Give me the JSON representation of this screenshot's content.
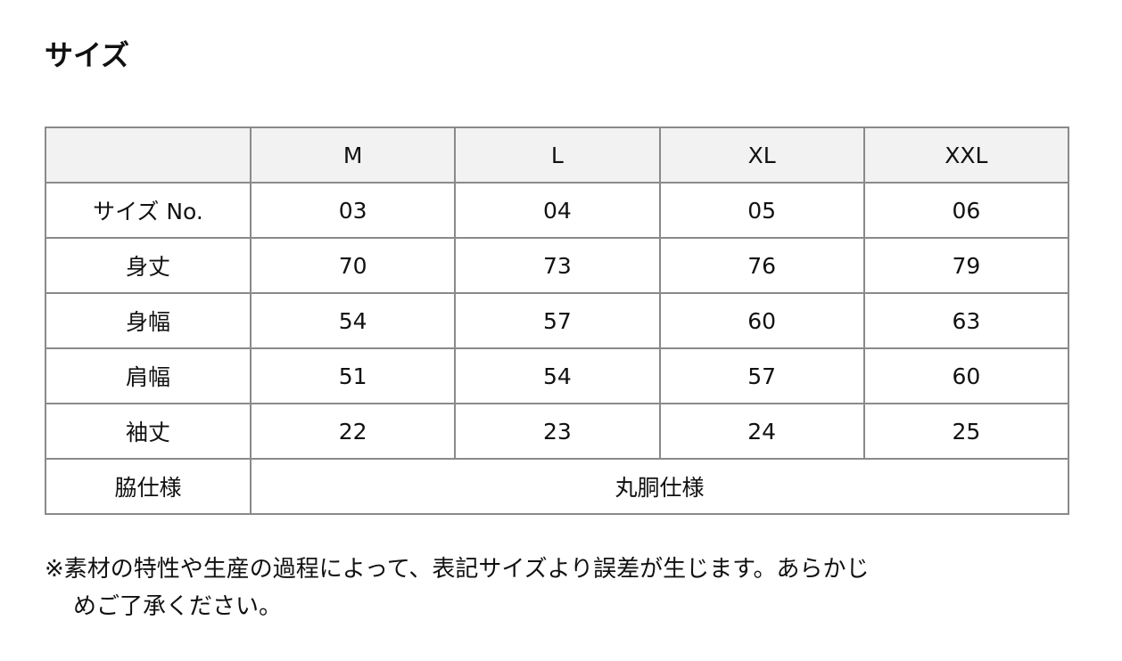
{
  "title": "サイズ",
  "table": {
    "headers": [
      "",
      "M",
      "L",
      "XL",
      "XXL"
    ],
    "rows": [
      {
        "label": "サイズ No.",
        "values": [
          "03",
          "04",
          "05",
          "06"
        ]
      },
      {
        "label": "身丈",
        "values": [
          "70",
          "73",
          "76",
          "79"
        ]
      },
      {
        "label": "身幅",
        "values": [
          "54",
          "57",
          "60",
          "63"
        ]
      },
      {
        "label": "肩幅",
        "values": [
          "51",
          "54",
          "57",
          "60"
        ]
      },
      {
        "label": "袖丈",
        "values": [
          "22",
          "23",
          "24",
          "25"
        ]
      }
    ],
    "last_row": {
      "label": "脇仕様",
      "value": "丸胴仕様"
    }
  },
  "note": {
    "line1": "※素材の特性や生産の過程によって、表記サイズより誤差が生じます。あらかじ",
    "line2": "めご了承ください。"
  }
}
